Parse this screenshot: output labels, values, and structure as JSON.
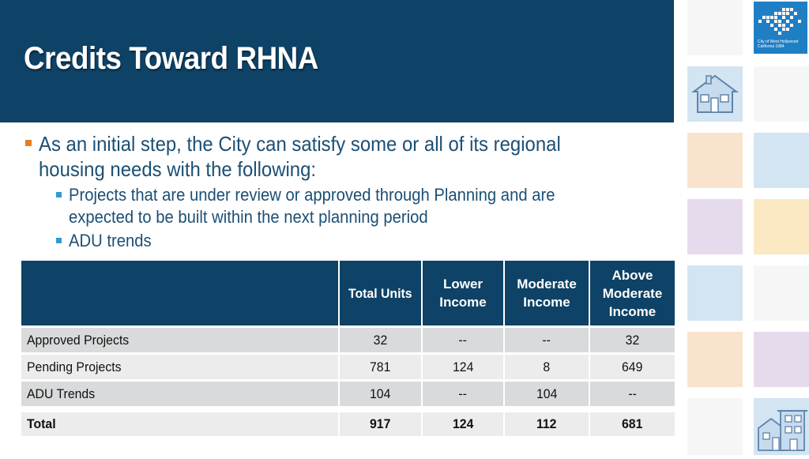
{
  "slide": {
    "title": "Credits Toward RHNA",
    "intro": "As an initial step, the City can satisfy some or all of its regional housing needs with the following:",
    "intro_line1": "As an initial step, the City can satisfy some or all of its regional",
    "intro_line2": "housing needs with the following:",
    "sub_bullets": [
      {
        "line1": "Projects that are under review or approved through Planning and are",
        "line2": "expected to be built within the next planning period"
      },
      {
        "line1": "ADU trends"
      }
    ]
  },
  "table": {
    "headers": [
      "",
      "Total Units",
      "Lower Income",
      "Moderate Income",
      "Above Moderate Income"
    ],
    "header_lines": [
      [
        ""
      ],
      [
        "Total Units"
      ],
      [
        "Lower",
        "Income"
      ],
      [
        "Moderate",
        "Income"
      ],
      [
        "Above",
        "Moderate",
        "Income"
      ]
    ],
    "rows": [
      [
        "Approved Projects",
        "32",
        "--",
        "--",
        "32"
      ],
      [
        "Pending Projects",
        "781",
        "124",
        "8",
        "649"
      ],
      [
        "ADU Trends",
        "104",
        "--",
        "104",
        "--"
      ]
    ],
    "total": [
      "Total",
      "917",
      "124",
      "112",
      "681"
    ]
  },
  "logo": {
    "line1": "City of West Hollywood",
    "line2": "California 1984"
  },
  "colors": {
    "header_bg": "#0e4266",
    "bullet_primary": "#e67e22",
    "bullet_secondary": "#2e9ad6",
    "text": "#1c4f74",
    "logo_bg": "#1f7fc4"
  },
  "icons": [
    "house-icon",
    "townhouse-icon"
  ]
}
